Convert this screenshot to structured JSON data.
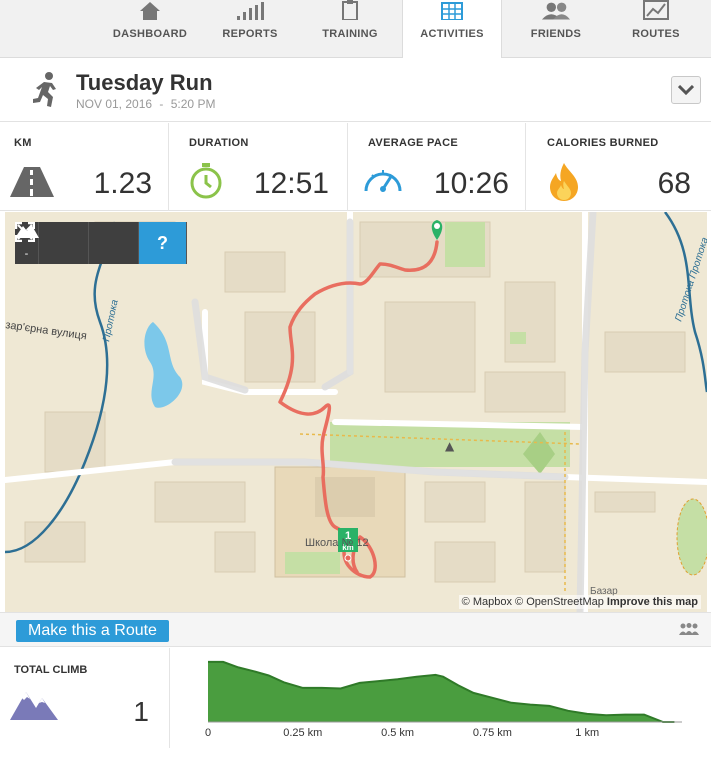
{
  "nav": {
    "items": [
      {
        "label": "DASHBOARD",
        "icon": "home-icon"
      },
      {
        "label": "REPORTS",
        "icon": "bar-chart-icon"
      },
      {
        "label": "TRAINING",
        "icon": "clipboard-icon"
      },
      {
        "label": "ACTIVITIES",
        "icon": "calendar-icon",
        "active": true
      },
      {
        "label": "FRIENDS",
        "icon": "people-icon"
      },
      {
        "label": "ROUTES",
        "icon": "map-route-icon"
      }
    ]
  },
  "header": {
    "title": "Tuesday Run",
    "date": "NOV 01, 2016",
    "separator": "-",
    "time": "5:20 PM",
    "activity_icon": "running-person-icon"
  },
  "stats": [
    {
      "label": "KM",
      "value": "1.23",
      "icon": "road-icon"
    },
    {
      "label": "DURATION",
      "value": "12:51",
      "icon": "stopwatch-icon"
    },
    {
      "label": "AVERAGE PACE",
      "value": "10:26",
      "icon": "speedometer-icon"
    },
    {
      "label": "CALORIES BURNED",
      "value": "68",
      "icon": "flame-icon"
    }
  ],
  "map": {
    "zoom_in": "+",
    "zoom_out": "-",
    "help": "?",
    "labels": {
      "street": "зар'єрна вулиця",
      "river_left": "Протока",
      "river_right": "Протока Протока",
      "school": "Школа № 12",
      "bazaar": "Базар",
      "marker_km": "1",
      "marker_unit": "km"
    },
    "attribution": {
      "mapbox": "© Mapbox",
      "osm": "© OpenStreetMap",
      "improve": "Improve this map"
    },
    "colors": {
      "route": "#e8675a",
      "start_marker": "#2ab267",
      "km_marker": "#2ab267"
    }
  },
  "route_bar": {
    "button_label": "Make this a Route",
    "icon": "people-group-icon"
  },
  "climb": {
    "label": "TOTAL CLIMB",
    "value": "1",
    "icon": "mountains-icon"
  },
  "chart_data": {
    "type": "area",
    "title": "",
    "xlabel": "",
    "ylabel": "",
    "x_unit": "km",
    "xlim": [
      0,
      1.25
    ],
    "ylim": [
      0,
      1
    ],
    "tick_labels": [
      "0",
      "0.25 km",
      "0.5 km",
      "0.75 km",
      "1 km"
    ],
    "tick_values": [
      0,
      0.25,
      0.5,
      0.75,
      1.0
    ],
    "series": [
      {
        "color": "#4a9d3f",
        "x": [
          0,
          0.04,
          0.08,
          0.12,
          0.16,
          0.2,
          0.25,
          0.3,
          0.35,
          0.4,
          0.45,
          0.5,
          0.55,
          0.6,
          0.62,
          0.66,
          0.7,
          0.75,
          0.8,
          0.85,
          0.9,
          0.95,
          1.0,
          1.05,
          1.1,
          1.15,
          1.2,
          1.23
        ],
        "y": [
          0.97,
          0.97,
          0.88,
          0.82,
          0.75,
          0.64,
          0.55,
          0.55,
          0.54,
          0.63,
          0.66,
          0.69,
          0.73,
          0.76,
          0.73,
          0.59,
          0.47,
          0.39,
          0.31,
          0.28,
          0.26,
          0.18,
          0.13,
          0.11,
          0.12,
          0.12,
          0.0,
          0.0
        ]
      }
    ]
  }
}
